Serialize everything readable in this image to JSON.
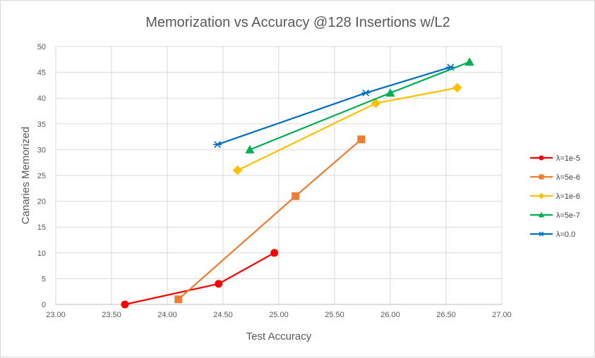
{
  "chart_data": {
    "type": "line",
    "title": "Memorization vs Accuracy @128 Insertions w/L2",
    "xlabel": "Test Accuracy",
    "ylabel": "Canaries Memorized",
    "xlim": [
      23.0,
      27.0
    ],
    "ylim": [
      0,
      50
    ],
    "x_ticks": [
      "23.00",
      "23.50",
      "24.00",
      "24.50",
      "25.00",
      "25.50",
      "26.00",
      "26.50",
      "27.00"
    ],
    "y_ticks": [
      "0",
      "5",
      "10",
      "15",
      "20",
      "25",
      "30",
      "35",
      "40",
      "45",
      "50"
    ],
    "grid": true,
    "legend_position": "right",
    "series": [
      {
        "name": "λ=1e-5",
        "color": "#ff0000",
        "marker": "circle",
        "points": [
          {
            "x": 23.62,
            "y": 0
          },
          {
            "x": 24.46,
            "y": 4
          },
          {
            "x": 24.96,
            "y": 10
          }
        ]
      },
      {
        "name": "λ=5e-6",
        "color": "#ed7d31",
        "marker": "square",
        "points": [
          {
            "x": 24.1,
            "y": 1
          },
          {
            "x": 25.15,
            "y": 21
          },
          {
            "x": 25.74,
            "y": 32
          }
        ]
      },
      {
        "name": "λ=1e-6",
        "color": "#ffc000",
        "marker": "diamond",
        "points": [
          {
            "x": 24.63,
            "y": 26
          },
          {
            "x": 25.87,
            "y": 39
          },
          {
            "x": 26.6,
            "y": 42
          }
        ]
      },
      {
        "name": "λ=5e-7",
        "color": "#00b050",
        "marker": "triangle",
        "points": [
          {
            "x": 24.74,
            "y": 30
          },
          {
            "x": 26.0,
            "y": 41
          },
          {
            "x": 26.71,
            "y": 47
          }
        ]
      },
      {
        "name": "λ=0.0",
        "color": "#0070c0",
        "marker": "asterisk",
        "points": [
          {
            "x": 24.45,
            "y": 31
          },
          {
            "x": 25.78,
            "y": 41
          },
          {
            "x": 26.54,
            "y": 46
          }
        ]
      }
    ]
  }
}
